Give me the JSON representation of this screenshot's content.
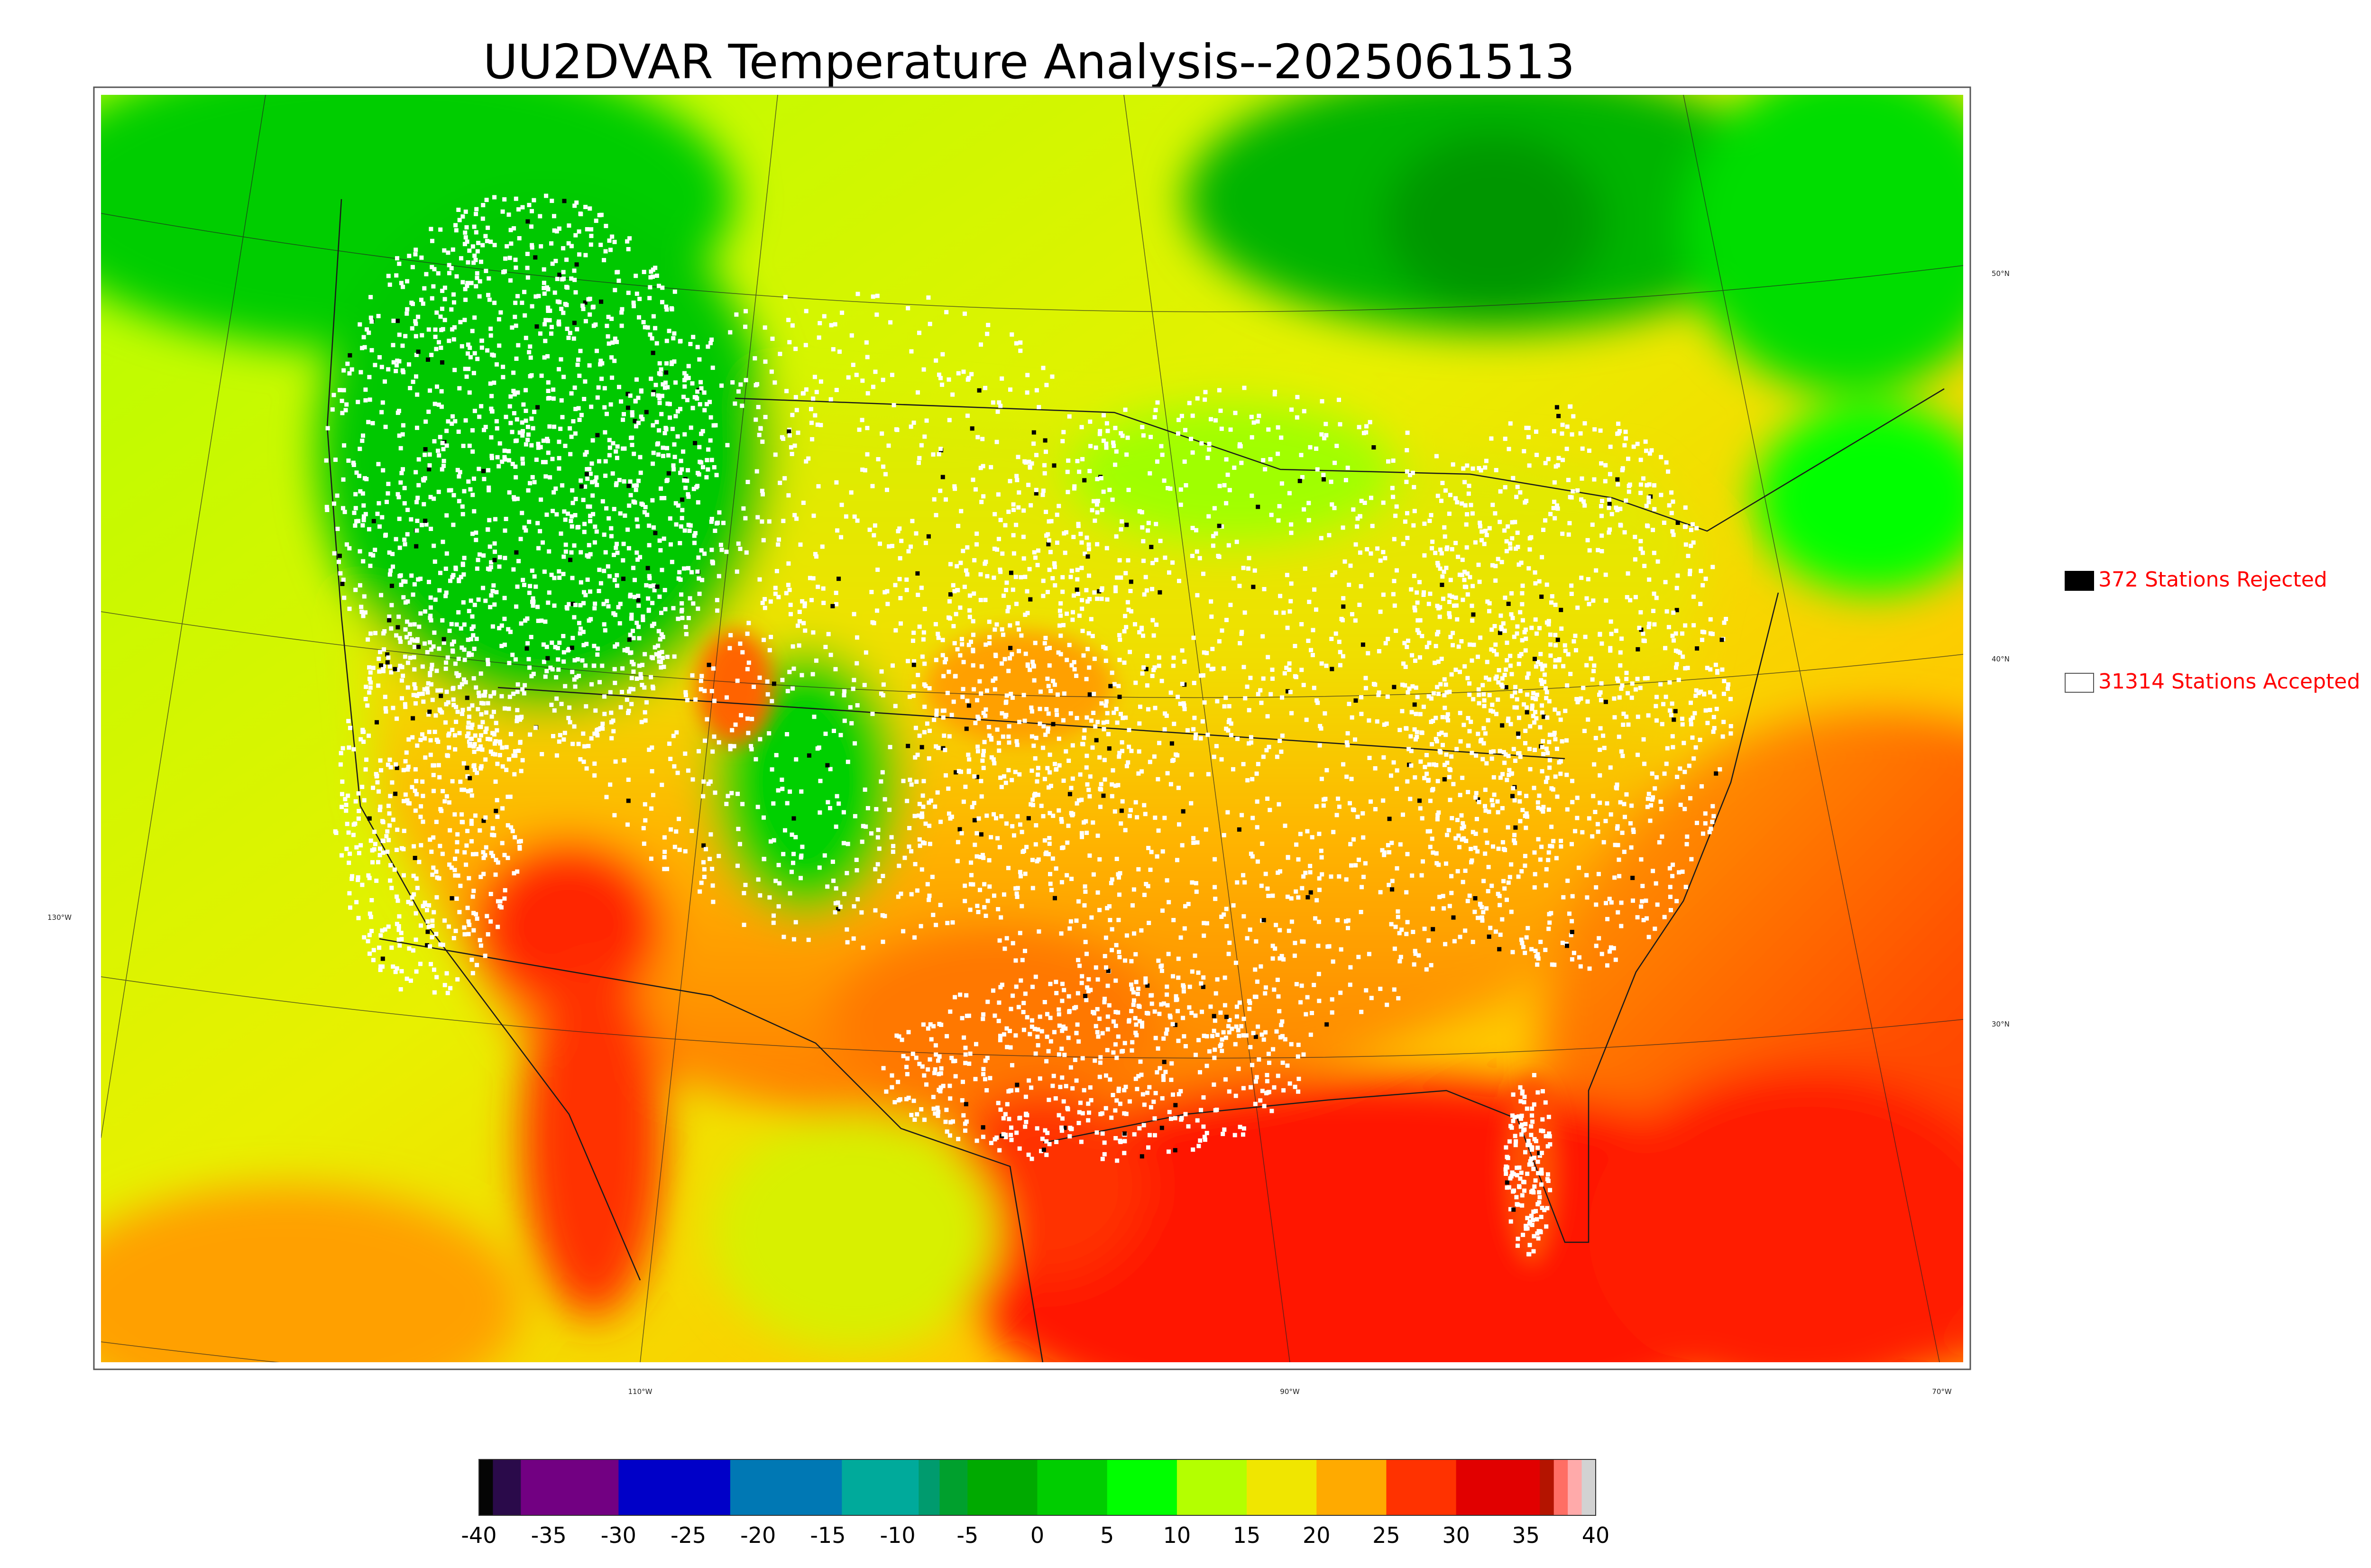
{
  "title": "UU2DVAR Temperature Analysis--2025061513",
  "legend": {
    "rejected_label": "372 Stations Rejected",
    "accepted_label": "31314 Stations Accepted",
    "rejected_color": "#000000",
    "accepted_color": "#ffffff",
    "text_color": "#ff0000"
  },
  "map": {
    "longitude_labels": [
      "110°W",
      "90°W",
      "70°W"
    ],
    "latitude_labels_right": [
      "50°N",
      "40°N",
      "30°N"
    ],
    "latitude_labels_left": [
      "130°W"
    ]
  },
  "colorbar": {
    "min": -40,
    "max": 40,
    "ticks": [
      "-40",
      "-35",
      "-30",
      "-25",
      "-20",
      "-15",
      "-10",
      "-5",
      "0",
      "5",
      "10",
      "15",
      "20",
      "25",
      "30",
      "35",
      "40"
    ],
    "bands": [
      {
        "from": -40,
        "to": -39,
        "color": "#050505"
      },
      {
        "from": -39,
        "to": -37,
        "color": "#2a0a4a"
      },
      {
        "from": -37,
        "to": -30,
        "color": "#720082"
      },
      {
        "from": -30,
        "to": -22,
        "color": "#0000c8"
      },
      {
        "from": -22,
        "to": -14,
        "color": "#0078b4"
      },
      {
        "from": -14,
        "to": -8.5,
        "color": "#00aa9b"
      },
      {
        "from": -8.5,
        "to": -7,
        "color": "#009b6e"
      },
      {
        "from": -7,
        "to": -5,
        "color": "#00a02d"
      },
      {
        "from": -5,
        "to": 0,
        "color": "#00aa00"
      },
      {
        "from": 0,
        "to": 5,
        "color": "#00cd00"
      },
      {
        "from": 5,
        "to": 10,
        "color": "#00ff00"
      },
      {
        "from": 10,
        "to": 15,
        "color": "#b4ff00"
      },
      {
        "from": 15,
        "to": 20,
        "color": "#f0e600"
      },
      {
        "from": 20,
        "to": 25,
        "color": "#ffaa00"
      },
      {
        "from": 25,
        "to": 30,
        "color": "#ff3200"
      },
      {
        "from": 30,
        "to": 36,
        "color": "#e10000"
      },
      {
        "from": 36,
        "to": 37,
        "color": "#b41400"
      },
      {
        "from": 37,
        "to": 38,
        "color": "#ff6e64"
      },
      {
        "from": 38,
        "to": 39,
        "color": "#ffaaaa"
      },
      {
        "from": 39,
        "to": 40,
        "color": "#d2d2d2"
      }
    ]
  }
}
